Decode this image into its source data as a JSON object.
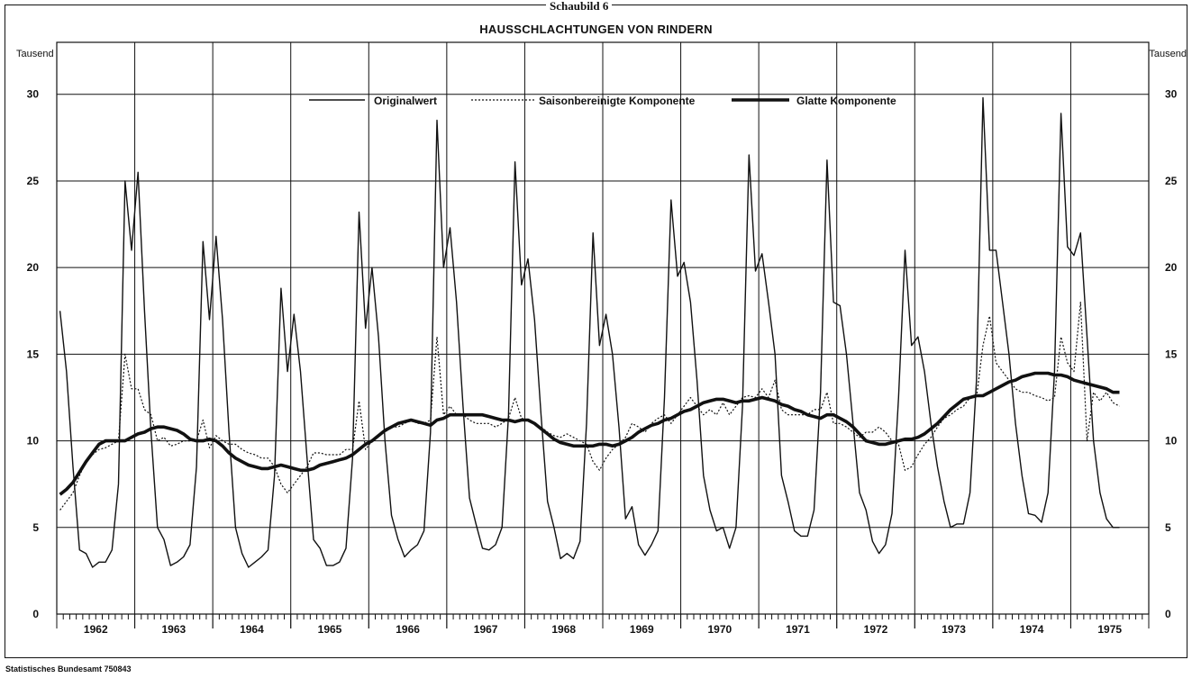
{
  "header": {
    "top_label": "Schaubild 6",
    "title": "HAUSSCHLACHTUNGEN VON RINDERN",
    "unit_left": "Tausend",
    "unit_right": "Tausend",
    "source": "Statistisches Bundesamt 750843"
  },
  "colors": {
    "line": "#111111",
    "grid": "#111111",
    "background": "#ffffff"
  },
  "chart_data": {
    "type": "line",
    "title": "HAUSSCHLACHTUNGEN VON RINDERN",
    "ylabel": "Tausend",
    "xlabel": "",
    "ylim": [
      0,
      33
    ],
    "yticks": [
      0,
      5,
      10,
      15,
      20,
      25,
      30
    ],
    "x_start": "1962-01",
    "x_frequency": "monthly",
    "xlim": [
      "1962-01",
      "1976-01"
    ],
    "x_tick_labels": [
      "1962",
      "1963",
      "1964",
      "1965",
      "1966",
      "1967",
      "1968",
      "1969",
      "1970",
      "1971",
      "1972",
      "1973",
      "1974",
      "1975"
    ],
    "grid": true,
    "legend": "top",
    "series": [
      {
        "name": "Originalwert",
        "style": "thin-solid",
        "values": [
          17.5,
          14.0,
          8.5,
          3.7,
          3.5,
          2.7,
          3.0,
          3.0,
          3.7,
          7.5,
          25.0,
          21.0,
          25.5,
          17.5,
          10.5,
          5.0,
          4.3,
          2.8,
          3.0,
          3.3,
          4.0,
          8.5,
          21.5,
          17.0,
          21.8,
          17.0,
          10.5,
          5.0,
          3.5,
          2.7,
          3.0,
          3.3,
          3.7,
          8.0,
          18.8,
          14.0,
          17.3,
          14.0,
          9.0,
          4.3,
          3.8,
          2.8,
          2.8,
          3.0,
          3.8,
          9.0,
          23.2,
          16.5,
          20.0,
          16.0,
          10.0,
          5.7,
          4.3,
          3.3,
          3.7,
          4.0,
          4.8,
          10.5,
          28.5,
          20.0,
          22.3,
          18.0,
          12.0,
          6.7,
          5.2,
          3.8,
          3.7,
          4.0,
          5.0,
          11.5,
          26.1,
          19.0,
          20.5,
          17.0,
          11.5,
          6.5,
          5.0,
          3.2,
          3.5,
          3.2,
          4.2,
          11.0,
          22.0,
          15.5,
          17.3,
          15.0,
          10.8,
          5.5,
          6.2,
          4.0,
          3.4,
          4.0,
          4.8,
          12.5,
          23.9,
          19.5,
          20.3,
          18.0,
          13.5,
          8.0,
          6.0,
          4.8,
          5.0,
          3.8,
          5.0,
          12.0,
          26.5,
          19.8,
          20.8,
          18.0,
          15.0,
          8.0,
          6.5,
          4.8,
          4.5,
          4.5,
          6.0,
          12.8,
          26.2,
          18.0,
          17.8,
          15.0,
          11.0,
          7.0,
          6.0,
          4.2,
          3.5,
          4.0,
          5.8,
          12.5,
          21.0,
          15.5,
          16.0,
          14.0,
          11.0,
          8.5,
          6.5,
          5.0,
          5.2,
          5.2,
          7.0,
          13.5,
          29.8,
          21.0,
          21.0,
          18.0,
          15.0,
          11.0,
          8.0,
          5.8,
          5.7,
          5.3,
          7.0,
          14.0,
          28.9,
          21.2,
          20.7,
          22.0,
          16.0,
          10.0,
          7.0,
          5.5,
          5.0,
          5.0
        ]
      },
      {
        "name": "Saisonbereinigte Komponente",
        "style": "dotted",
        "values": [
          6.0,
          6.5,
          7.0,
          8.0,
          8.8,
          9.2,
          9.5,
          9.6,
          9.8,
          10.0,
          15.0,
          13.0,
          13.0,
          11.8,
          11.5,
          10.0,
          10.2,
          9.7,
          9.8,
          10.0,
          10.0,
          10.0,
          11.2,
          9.6,
          10.3,
          10.0,
          9.8,
          9.8,
          9.5,
          9.3,
          9.2,
          9.0,
          9.0,
          8.5,
          7.5,
          7.0,
          7.5,
          8.0,
          8.5,
          9.3,
          9.3,
          9.2,
          9.2,
          9.2,
          9.5,
          9.5,
          12.3,
          9.5,
          10.0,
          10.3,
          10.5,
          10.8,
          10.8,
          11.0,
          11.2,
          11.0,
          11.0,
          11.2,
          16.0,
          11.5,
          12.0,
          11.5,
          11.5,
          11.2,
          11.0,
          11.0,
          11.0,
          10.8,
          11.0,
          11.3,
          12.5,
          11.3,
          11.2,
          11.0,
          10.8,
          10.5,
          10.3,
          10.2,
          10.4,
          10.2,
          10.0,
          9.8,
          8.8,
          8.3,
          9.0,
          9.5,
          9.8,
          10.2,
          11.0,
          10.8,
          10.5,
          11.0,
          11.3,
          11.5,
          11.0,
          11.5,
          12.0,
          12.5,
          12.0,
          11.5,
          11.8,
          11.5,
          12.2,
          11.5,
          12.0,
          12.5,
          12.6,
          12.5,
          13.0,
          12.5,
          13.5,
          11.8,
          11.5,
          11.5,
          11.5,
          11.5,
          11.8,
          11.8,
          12.8,
          11.0,
          11.0,
          10.8,
          10.5,
          10.2,
          10.5,
          10.5,
          10.8,
          10.5,
          10.0,
          9.8,
          8.3,
          8.5,
          9.2,
          9.8,
          10.2,
          10.8,
          11.3,
          11.5,
          11.8,
          12.0,
          12.5,
          12.5,
          15.5,
          17.2,
          14.5,
          14.0,
          13.5,
          13.0,
          12.8,
          12.8,
          12.6,
          12.5,
          12.3,
          12.5,
          16.0,
          14.5,
          14.0,
          18.0,
          10.0,
          12.8,
          12.3,
          12.8,
          12.2,
          12.0
        ]
      },
      {
        "name": "Glatte Komponente",
        "style": "thick-solid",
        "values": [
          6.9,
          7.2,
          7.6,
          8.2,
          8.8,
          9.3,
          9.8,
          10.0,
          10.0,
          10.0,
          10.0,
          10.2,
          10.4,
          10.5,
          10.7,
          10.8,
          10.8,
          10.7,
          10.6,
          10.4,
          10.1,
          10.0,
          10.0,
          10.1,
          10.0,
          9.7,
          9.3,
          9.0,
          8.8,
          8.6,
          8.5,
          8.4,
          8.4,
          8.5,
          8.6,
          8.5,
          8.4,
          8.3,
          8.3,
          8.4,
          8.6,
          8.7,
          8.8,
          8.9,
          9.0,
          9.2,
          9.5,
          9.8,
          10.0,
          10.3,
          10.6,
          10.8,
          11.0,
          11.1,
          11.2,
          11.1,
          11.0,
          10.9,
          11.2,
          11.3,
          11.5,
          11.5,
          11.5,
          11.5,
          11.5,
          11.5,
          11.4,
          11.3,
          11.2,
          11.2,
          11.1,
          11.2,
          11.2,
          11.0,
          10.7,
          10.4,
          10.1,
          9.9,
          9.8,
          9.7,
          9.7,
          9.7,
          9.7,
          9.8,
          9.8,
          9.7,
          9.8,
          10.0,
          10.2,
          10.5,
          10.7,
          10.9,
          11.0,
          11.2,
          11.3,
          11.5,
          11.7,
          11.8,
          12.0,
          12.2,
          12.3,
          12.4,
          12.4,
          12.3,
          12.2,
          12.3,
          12.3,
          12.4,
          12.5,
          12.4,
          12.3,
          12.1,
          12.0,
          11.8,
          11.7,
          11.5,
          11.4,
          11.3,
          11.5,
          11.5,
          11.3,
          11.1,
          10.8,
          10.4,
          10.0,
          9.9,
          9.8,
          9.8,
          9.9,
          10.0,
          10.1,
          10.1,
          10.2,
          10.4,
          10.7,
          11.0,
          11.4,
          11.8,
          12.1,
          12.4,
          12.5,
          12.6,
          12.6,
          12.8,
          13.0,
          13.2,
          13.4,
          13.5,
          13.7,
          13.8,
          13.9,
          13.9,
          13.9,
          13.8,
          13.8,
          13.7,
          13.5,
          13.4,
          13.3,
          13.2,
          13.1,
          13.0,
          12.8,
          12.8
        ]
      }
    ]
  }
}
